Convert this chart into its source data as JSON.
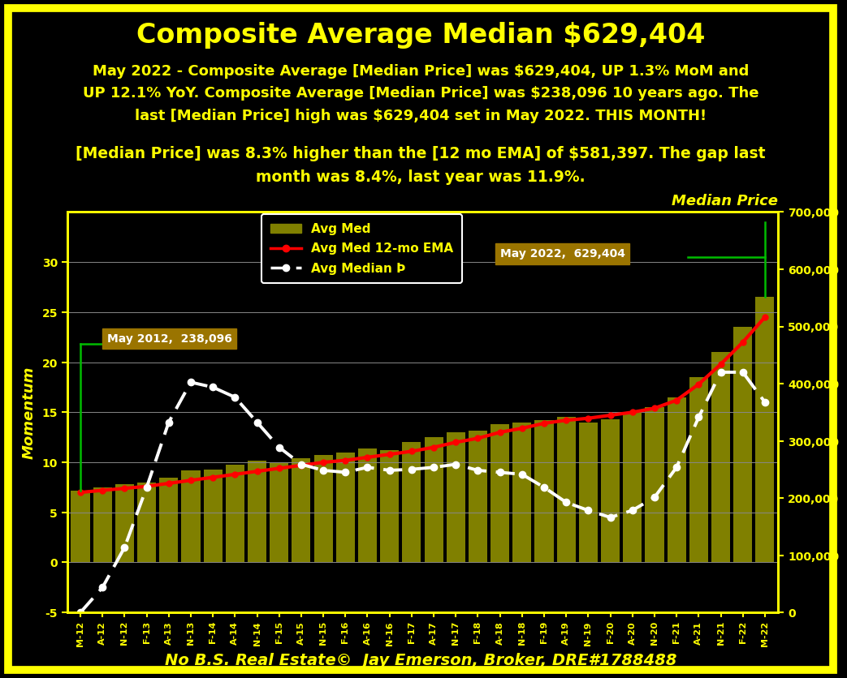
{
  "title": "Composite Average Median $629,404",
  "subtitle1": "May 2022 - Composite Average [Median Price] was $629,404, UP 1.3% MoM and\nUP 12.1% YoY. Composite Average [Median Price] was $238,096 10 years ago. The\nlast [Median Price] high was $629,404 set in May 2022. THIS MONTH!",
  "subtitle2": "[Median Price] was 8.3% higher than the [12 mo EMA] of $581,397. The gap last\nmonth was 8.4%, last year was 11.9%.",
  "footer": "No B.S. Real Estate©  Jay Emerson, Broker, DRE#1788488",
  "bg_color": "#000000",
  "title_color": "#ffff00",
  "text_color": "#ffff00",
  "bar_color": "#808000",
  "ema_color": "#ff0000",
  "momentum_color": "#ffffff",
  "green_line_color": "#00bb00",
  "grid_color": "#ffffff",
  "x_labels": [
    "M-12",
    "A-12",
    "N-12",
    "F-13",
    "A-13",
    "N-13",
    "F-14",
    "A-14",
    "N-14",
    "F-15",
    "A-15",
    "N-15",
    "F-16",
    "A-16",
    "N-16",
    "F-17",
    "A-17",
    "N-17",
    "F-18",
    "A-18",
    "N-18",
    "F-19",
    "A-19",
    "N-19",
    "F-20",
    "A-20",
    "N-20",
    "F-21",
    "A-21",
    "N-21",
    "F-22",
    "M-22"
  ],
  "bar_values": [
    7.2,
    7.5,
    7.8,
    8.0,
    8.5,
    9.2,
    9.3,
    9.8,
    10.2,
    10.0,
    10.4,
    10.7,
    11.0,
    11.4,
    11.2,
    12.0,
    12.5,
    13.0,
    13.2,
    13.8,
    14.0,
    14.2,
    14.5,
    14.0,
    14.3,
    15.0,
    15.5,
    16.5,
    18.5,
    21.0,
    23.5,
    26.5
  ],
  "ema_values": [
    7.0,
    7.2,
    7.4,
    7.6,
    7.9,
    8.2,
    8.5,
    8.8,
    9.1,
    9.4,
    9.7,
    10.0,
    10.2,
    10.5,
    10.8,
    11.1,
    11.5,
    12.0,
    12.4,
    13.0,
    13.4,
    13.9,
    14.2,
    14.4,
    14.7,
    15.0,
    15.4,
    16.2,
    17.8,
    19.8,
    22.0,
    24.5
  ],
  "momentum_values": [
    -5.0,
    -2.5,
    1.5,
    7.5,
    14.0,
    18.0,
    17.5,
    16.5,
    14.0,
    11.5,
    9.8,
    9.2,
    9.0,
    9.5,
    9.2,
    9.3,
    9.5,
    9.8,
    9.2,
    9.0,
    8.8,
    7.5,
    6.0,
    5.2,
    4.5,
    5.2,
    6.5,
    9.5,
    14.5,
    19.0,
    19.0,
    16.0
  ],
  "ylim_left": [
    -5,
    35
  ],
  "ylim_right": [
    0,
    700000
  ],
  "yticks_left": [
    -5,
    0,
    5,
    10,
    15,
    20,
    25,
    30
  ],
  "yticks_right": [
    0,
    100000,
    200000,
    300000,
    400000,
    500000,
    600000,
    700000
  ],
  "annotation1_label": "May 2012,  238,096",
  "annotation2_label": "May 2022,  629,404",
  "left_axis_label": "Momentum",
  "right_axis_label": "Median Price",
  "title_fontsize": 24,
  "subtitle_fontsize": 13,
  "footer_fontsize": 14,
  "axis_label_fontsize": 12,
  "tick_fontsize": 10,
  "legend_fontsize": 11
}
